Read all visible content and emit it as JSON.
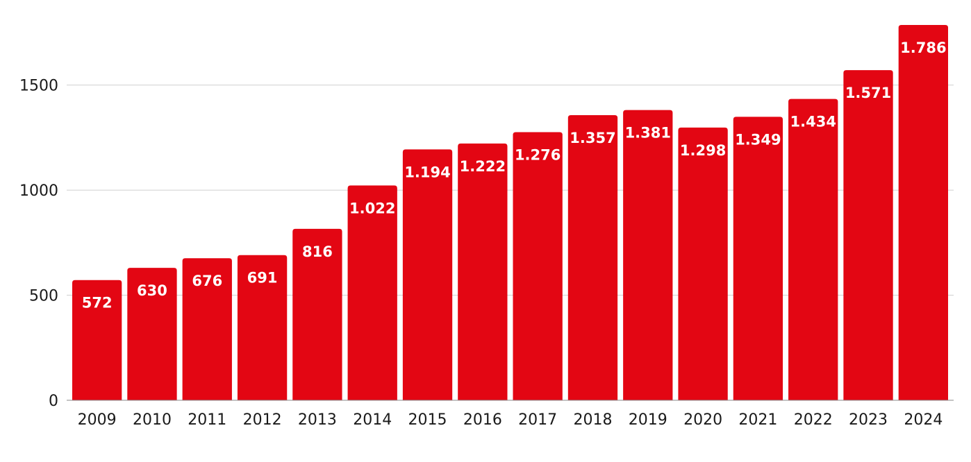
{
  "chart_data": {
    "type": "bar",
    "title": "",
    "xlabel": "",
    "ylabel": "",
    "categories": [
      "2009",
      "2010",
      "2011",
      "2012",
      "2013",
      "2014",
      "2015",
      "2016",
      "2017",
      "2018",
      "2019",
      "2020",
      "2021",
      "2022",
      "2023",
      "2024"
    ],
    "values": [
      572,
      630,
      676,
      691,
      816,
      1022,
      1194,
      1222,
      1276,
      1357,
      1381,
      1298,
      1349,
      1434,
      1571,
      1786
    ],
    "data_labels": [
      "572",
      "630",
      "676",
      "691",
      "816",
      "1.022",
      "1.194",
      "1.222",
      "1.276",
      "1.357",
      "1.381",
      "1.298",
      "1.349",
      "1.434",
      "1.571",
      "1.786"
    ],
    "ylim": [
      0,
      1786
    ],
    "y_ticks": [
      0,
      500,
      1000,
      1500
    ],
    "y_tick_labels": [
      "0",
      "500",
      "1000",
      "1500"
    ],
    "grid": true,
    "bar_color": "#e30613",
    "label_color": "#ffffff"
  }
}
